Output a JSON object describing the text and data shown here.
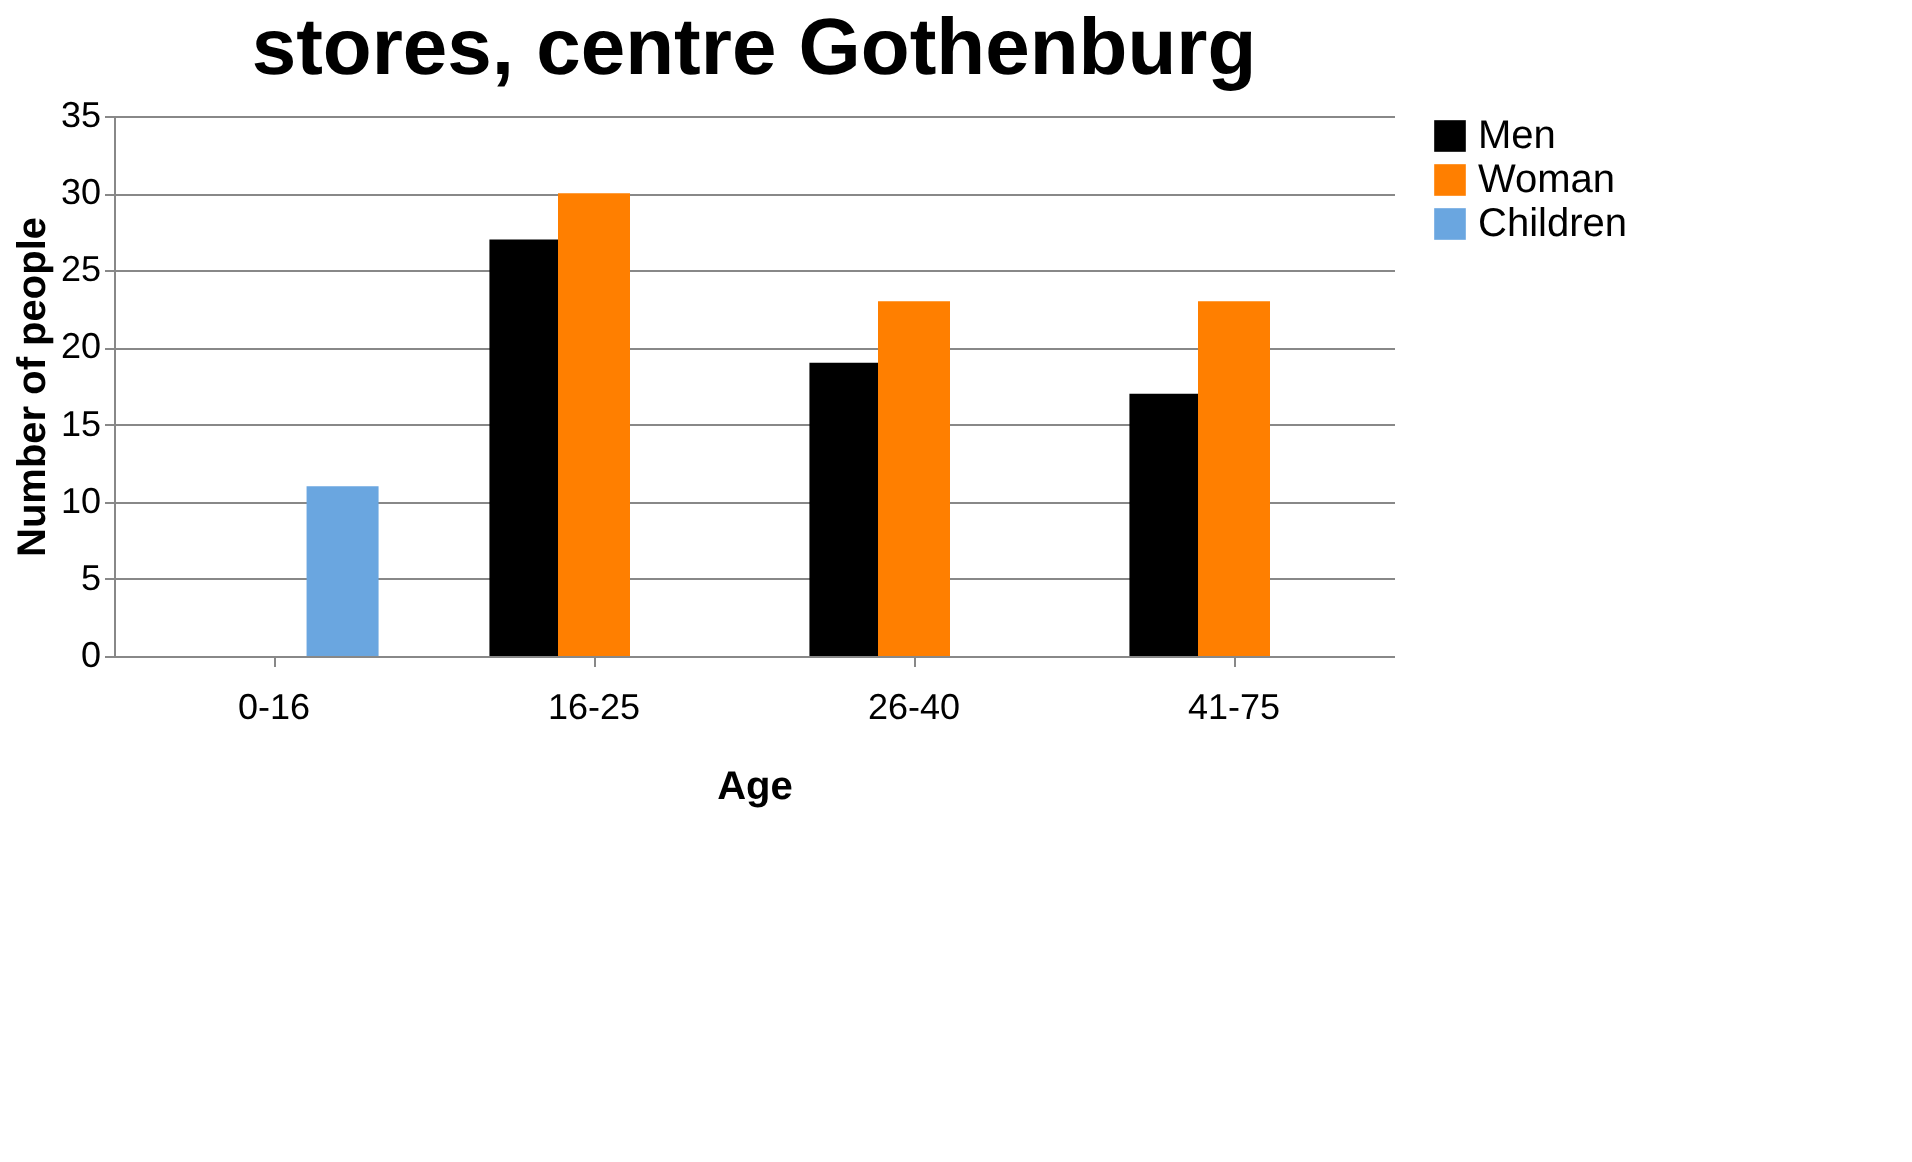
{
  "chart_data": {
    "type": "bar",
    "title": "stores, centre Gothenburg",
    "xlabel": "Age",
    "ylabel": "Number of people",
    "categories": [
      "0-16",
      "16-25",
      "26-40",
      "41-75"
    ],
    "series": [
      {
        "name": "Men",
        "color": "#000000",
        "values": [
          null,
          27,
          19,
          17
        ]
      },
      {
        "name": "Woman",
        "color": "#ff7f00",
        "values": [
          null,
          30,
          23,
          23
        ]
      },
      {
        "name": "Children",
        "color": "#6aa6e0",
        "values": [
          11,
          null,
          null,
          null
        ]
      }
    ],
    "ylim": [
      0,
      35
    ],
    "yticks": [
      0,
      5,
      10,
      15,
      20,
      25,
      30,
      35
    ],
    "grid": "y",
    "legend": "right"
  }
}
